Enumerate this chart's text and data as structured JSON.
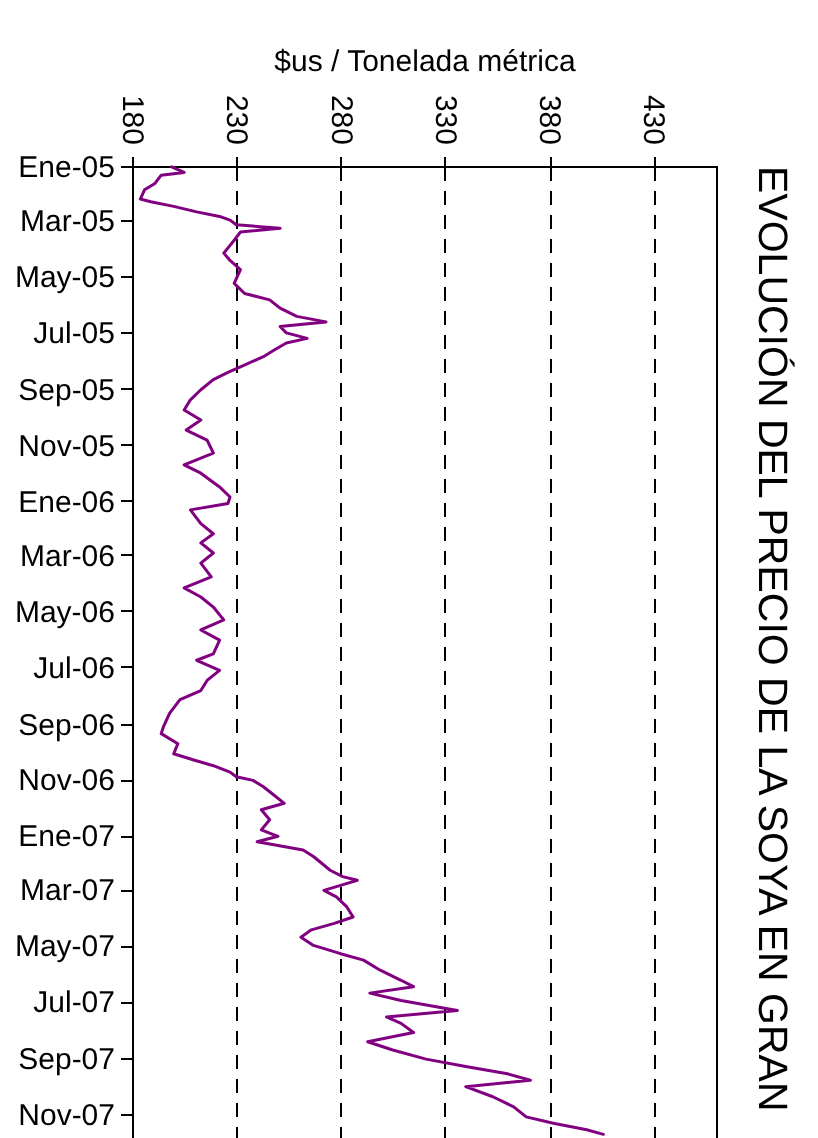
{
  "chart_data": {
    "type": "line",
    "orientation": "horizontal",
    "title": "EVOLUCIÓN DEL PRECIO DE LA SOYA EN GRAN",
    "xlabel": "$us / Tonelada métrica",
    "x": [
      "2005-01-02",
      "2005-01-08",
      "2005-01-11",
      "2005-01-20",
      "2005-01-27",
      "2005-02-06",
      "2005-02-09",
      "2005-02-14",
      "2005-02-20",
      "2005-02-25",
      "2005-03-01",
      "2005-03-06",
      "2005-03-10",
      "2005-03-14",
      "2005-03-23",
      "2005-04-06",
      "2005-04-14",
      "2005-04-24",
      "2005-05-09",
      "2005-05-20",
      "2005-05-27",
      "2005-06-05",
      "2005-06-14",
      "2005-06-20",
      "2005-06-25",
      "2005-07-02",
      "2005-07-08",
      "2005-07-13",
      "2005-07-21",
      "2005-07-28",
      "2005-08-08",
      "2005-08-14",
      "2005-08-22",
      "2005-09-02",
      "2005-09-13",
      "2005-09-24",
      "2005-10-05",
      "2005-10-16",
      "2005-10-27",
      "2005-11-10",
      "2005-11-23",
      "2005-12-02",
      "2005-12-17",
      "2005-12-28",
      "2006-01-04",
      "2006-01-11",
      "2006-01-26",
      "2006-02-06",
      "2006-02-16",
      "2006-02-27",
      "2006-03-10",
      "2006-03-25",
      "2006-04-06",
      "2006-04-16",
      "2006-04-27",
      "2006-05-11",
      "2006-05-22",
      "2006-06-02",
      "2006-06-17",
      "2006-06-24",
      "2006-07-05",
      "2006-07-16",
      "2006-07-27",
      "2006-08-06",
      "2006-08-21",
      "2006-09-05",
      "2006-09-12",
      "2006-09-23",
      "2006-10-04",
      "2006-10-11",
      "2006-10-17",
      "2006-10-24",
      "2006-10-29",
      "2006-11-02",
      "2006-11-09",
      "2006-11-18",
      "2006-11-27",
      "2006-12-04",
      "2006-12-15",
      "2006-12-26",
      "2007-01-02",
      "2007-01-08",
      "2007-01-17",
      "2007-01-24",
      "2007-02-08",
      "2007-02-15",
      "2007-02-19",
      "2007-03-02",
      "2007-03-09",
      "2007-03-20",
      "2007-03-31",
      "2007-04-07",
      "2007-04-14",
      "2007-04-22",
      "2007-05-01",
      "2007-05-10",
      "2007-05-17",
      "2007-05-28",
      "2007-06-08",
      "2007-06-15",
      "2007-06-22",
      "2007-06-30",
      "2007-07-11",
      "2007-07-18",
      "2007-07-25",
      "2007-08-04",
      "2007-08-14",
      "2007-08-23",
      "2007-09-02",
      "2007-09-10",
      "2007-09-18",
      "2007-09-25",
      "2007-10-02",
      "2007-10-13",
      "2007-10-24",
      "2007-11-04",
      "2007-11-11",
      "2007-11-18",
      "2007-11-23"
    ],
    "series": [
      {
        "color": "#800080",
        "values": [
          199,
          205,
          194,
          191,
          186,
          184,
          189,
          200,
          211,
          222,
          227,
          230,
          251,
          232,
          229,
          224,
          227,
          232,
          229,
          234,
          246,
          251,
          259,
          273,
          251,
          254,
          264,
          254,
          248,
          243,
          232,
          226,
          219,
          213,
          208,
          205,
          213,
          206,
          216,
          219,
          205,
          213,
          222,
          227,
          226,
          208,
          213,
          219,
          213,
          219,
          213,
          218,
          205,
          213,
          219,
          224,
          213,
          222,
          219,
          211,
          222,
          216,
          213,
          203,
          198,
          195,
          194,
          202,
          200,
          210,
          219,
          227,
          230,
          238,
          243,
          248,
          253,
          242,
          246,
          242,
          250,
          240,
          262,
          267,
          275,
          281,
          288,
          272,
          278,
          283,
          286,
          277,
          266,
          261,
          267,
          280,
          291,
          299,
          309,
          315,
          294,
          309,
          336,
          302,
          309,
          315,
          293,
          305,
          321,
          340,
          360,
          371,
          340,
          353,
          363,
          369,
          382,
          398,
          406
        ]
      }
    ],
    "xlim": [
      180,
      460
    ],
    "xticks": [
      180,
      230,
      280,
      330,
      380,
      430
    ],
    "ylim": [
      "2007-11-27",
      "2005-01-01"
    ],
    "yticks": [
      {
        "value": "2005-01-01",
        "label": "Ene-05"
      },
      {
        "value": "2005-03-01",
        "label": "Mar-05"
      },
      {
        "value": "2005-05-01",
        "label": "May-05"
      },
      {
        "value": "2005-07-01",
        "label": "Jul-05"
      },
      {
        "value": "2005-09-01",
        "label": "Sep-05"
      },
      {
        "value": "2005-11-01",
        "label": "Nov-05"
      },
      {
        "value": "2006-01-01",
        "label": "Ene-06"
      },
      {
        "value": "2006-03-01",
        "label": "Mar-06"
      },
      {
        "value": "2006-05-01",
        "label": "May-06"
      },
      {
        "value": "2006-07-01",
        "label": "Jul-06"
      },
      {
        "value": "2006-09-01",
        "label": "Sep-06"
      },
      {
        "value": "2006-11-01",
        "label": "Nov-06"
      },
      {
        "value": "2007-01-01",
        "label": "Ene-07"
      },
      {
        "value": "2007-03-01",
        "label": "Mar-07"
      },
      {
        "value": "2007-05-01",
        "label": "May-07"
      },
      {
        "value": "2007-07-01",
        "label": "Jul-07"
      },
      {
        "value": "2007-09-01",
        "label": "Sep-07"
      },
      {
        "value": "2007-11-01",
        "label": "Nov-07"
      }
    ],
    "grid": "x"
  }
}
